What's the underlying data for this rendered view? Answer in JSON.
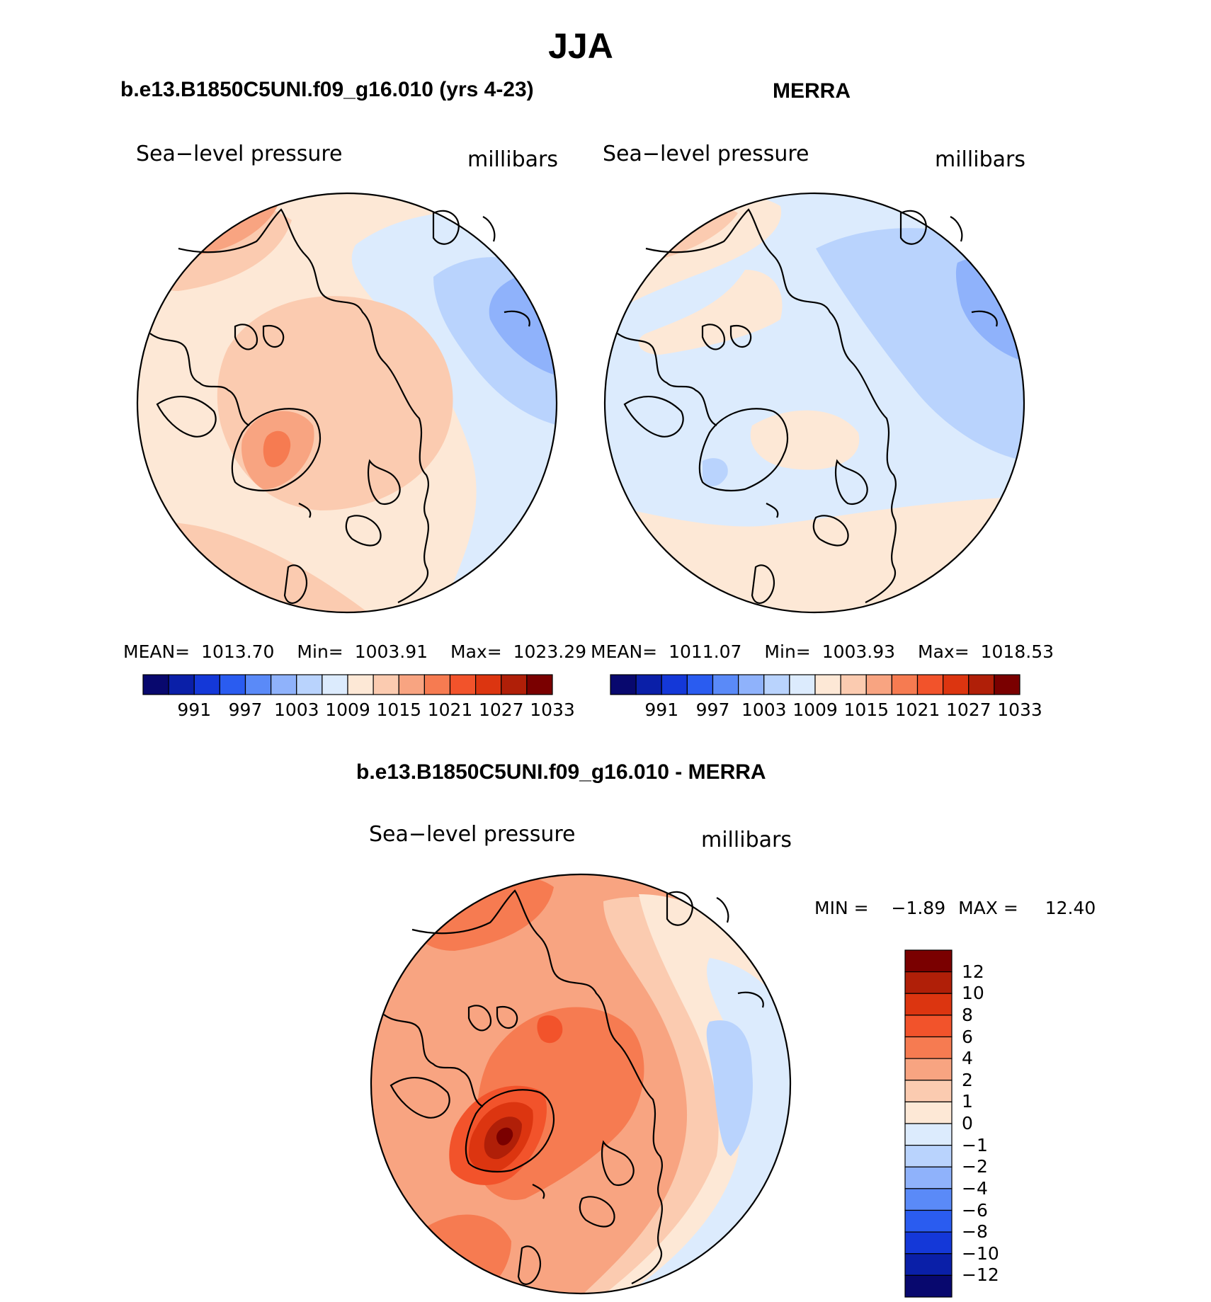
{
  "title": "JJA",
  "panels": [
    {
      "id": "model",
      "case_title": "b.e13.B1850C5UNI.f09_g16.010 (yrs 4-23)",
      "variable": "Sea−level pressure",
      "units": "millibars",
      "stats": {
        "mean_label": "MEAN=",
        "mean": "1013.70",
        "min_label": "Min=",
        "min": "1003.91",
        "max_label": "Max=",
        "max": "1023.29"
      }
    },
    {
      "id": "obs",
      "case_title": "MERRA",
      "variable": "Sea−level pressure",
      "units": "millibars",
      "stats": {
        "mean_label": "MEAN=",
        "mean": "1011.07",
        "min_label": "Min=",
        "min": "1003.93",
        "max_label": "Max=",
        "max": "1018.53"
      }
    }
  ],
  "abs_colorbar": {
    "colors": [
      "#08086e",
      "#0a1fa8",
      "#1438d8",
      "#2a5cf0",
      "#5a8af8",
      "#8fb2fb",
      "#b9d3fd",
      "#dcebfd",
      "#fde8d6",
      "#fbcbb0",
      "#f8a481",
      "#f67b51",
      "#f2532b",
      "#dc3510",
      "#b01f08",
      "#7a0000"
    ],
    "labels": [
      "991",
      "997",
      "1003",
      "1009",
      "1015",
      "1021",
      "1027",
      "1033"
    ]
  },
  "diff_panel": {
    "title": "b.e13.B1850C5UNI.f09_g16.010 - MERRA",
    "variable": "Sea−level pressure",
    "units": "millibars",
    "min_label": "MIN =",
    "min": "−1.89",
    "max_label": "MAX =",
    "max": "12.40"
  },
  "diff_colorbar": {
    "colors": [
      "#7a0000",
      "#b01f08",
      "#dc3510",
      "#f2532b",
      "#f67b51",
      "#f8a481",
      "#fbcbb0",
      "#fde8d6",
      "#dcebfd",
      "#b9d3fd",
      "#8fb2fb",
      "#5a8af8",
      "#2a5cf0",
      "#1438d8",
      "#0a1fa8",
      "#08086e"
    ],
    "labels": [
      "12",
      "10",
      "8",
      "6",
      "4",
      "2",
      "1",
      "0",
      "−1",
      "−2",
      "−4",
      "−6",
      "−8",
      "−10",
      "−12"
    ]
  }
}
